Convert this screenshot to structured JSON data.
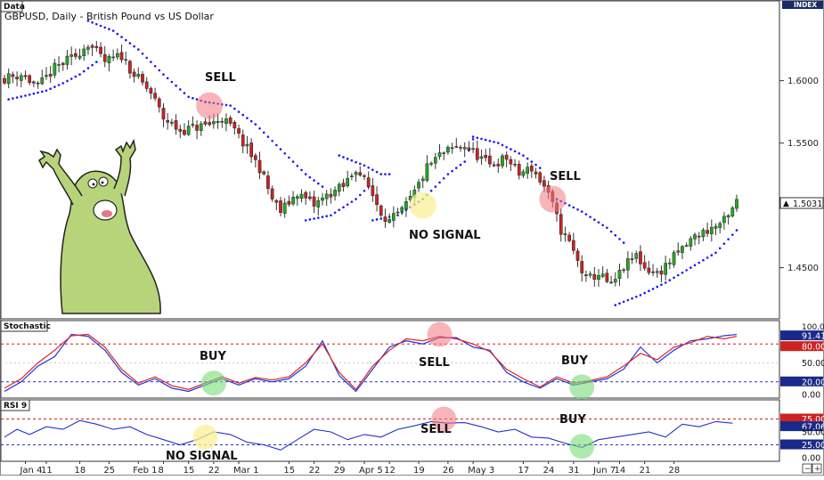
{
  "title": "GBPUSD, Daily - British Pound vs US Dollar",
  "colors": {
    "up": "#22aa22",
    "down": "#cc2222",
    "sar": "#1a1aee",
    "stoch_k": "#2233dd",
    "stoch_d": "#dd2222",
    "rsi": "#2233cc"
  },
  "annotations": {
    "sell_1": "SELL",
    "sell_2": "SELL",
    "no_signal_1": "NO SIGNAL",
    "stoch_buy_1": "BUY",
    "stoch_sell": "SELL",
    "stoch_buy_2": "BUY",
    "rsi_no_signal": "NO SIGNAL",
    "rsi_sell": "SELL",
    "rsi_buy": "BUY"
  },
  "chart_data": [
    {
      "type": "candlestick",
      "tag": "Data",
      "title": "GBPUSD, Daily - British Pound vs US Dollar",
      "axis_tag": "INDEX",
      "y_ticks": [
        "1.6000",
        "1.5500",
        "1.5031",
        "1.4500"
      ],
      "last_price": "1.5031",
      "x_ticks": [
        "Jan 4",
        "11",
        "18",
        "25",
        "Feb 1",
        "8",
        "15",
        "22",
        "Mar 1",
        "15",
        "22",
        "29",
        "Apr 5",
        "12",
        "19",
        "26",
        "May 3",
        "17",
        "24",
        "31",
        "Jun 7",
        "14",
        "21",
        "28"
      ],
      "close_path": [
        [
          0,
          1.602
        ],
        [
          4,
          1.605
        ],
        [
          8,
          1.595
        ],
        [
          12,
          1.61
        ],
        [
          17,
          1.62
        ],
        [
          20,
          1.63
        ],
        [
          24,
          1.615
        ],
        [
          28,
          1.62
        ],
        [
          31,
          1.605
        ],
        [
          35,
          1.59
        ],
        [
          38,
          1.57
        ],
        [
          42,
          1.56
        ],
        [
          45,
          1.562
        ],
        [
          49,
          1.565
        ],
        [
          52,
          1.57
        ],
        [
          55,
          1.56
        ],
        [
          58,
          1.545
        ],
        [
          61,
          1.53
        ],
        [
          64,
          1.505
        ],
        [
          66,
          1.495
        ],
        [
          70,
          1.51
        ],
        [
          74,
          1.5
        ],
        [
          78,
          1.51
        ],
        [
          81,
          1.515
        ],
        [
          84,
          1.53
        ],
        [
          87,
          1.515
        ],
        [
          90,
          1.495
        ],
        [
          92,
          1.487
        ],
        [
          95,
          1.495
        ],
        [
          98,
          1.51
        ],
        [
          101,
          1.53
        ],
        [
          104,
          1.54
        ],
        [
          107,
          1.545
        ],
        [
          110,
          1.548
        ],
        [
          113,
          1.54
        ],
        [
          116,
          1.532
        ],
        [
          120,
          1.538
        ],
        [
          123,
          1.525
        ],
        [
          126,
          1.53
        ],
        [
          129,
          1.515
        ],
        [
          131,
          1.5
        ],
        [
          133,
          1.48
        ],
        [
          135,
          1.47
        ],
        [
          137,
          1.455
        ],
        [
          139,
          1.44
        ],
        [
          142,
          1.445
        ],
        [
          145,
          1.435
        ],
        [
          148,
          1.45
        ],
        [
          151,
          1.46
        ],
        [
          153,
          1.45
        ],
        [
          156,
          1.445
        ],
        [
          159,
          1.455
        ],
        [
          162,
          1.465
        ],
        [
          165,
          1.475
        ],
        [
          168,
          1.48
        ],
        [
          171,
          1.485
        ],
        [
          173,
          1.49
        ],
        [
          175,
          1.5031
        ]
      ],
      "parabolic_sar": [
        [
          [
            1,
            1.585
          ],
          [
            5,
            1.588
          ],
          [
            10,
            1.592
          ],
          [
            14,
            1.598
          ],
          [
            18,
            1.605
          ],
          [
            22,
            1.615
          ]
        ],
        [
          [
            20,
            1.648
          ],
          [
            26,
            1.64
          ],
          [
            32,
            1.625
          ],
          [
            38,
            1.605
          ],
          [
            44,
            1.587
          ],
          [
            48,
            1.583
          ]
        ],
        [
          [
            48,
            1.583
          ],
          [
            54,
            1.58
          ],
          [
            60,
            1.565
          ],
          [
            66,
            1.545
          ],
          [
            72,
            1.525
          ],
          [
            76,
            1.515
          ]
        ],
        [
          [
            72,
            1.488
          ],
          [
            78,
            1.492
          ],
          [
            84,
            1.505
          ],
          [
            87,
            1.515
          ]
        ],
        [
          [
            80,
            1.54
          ],
          [
            86,
            1.532
          ],
          [
            90,
            1.525
          ],
          [
            92,
            1.525
          ]
        ],
        [
          [
            88,
            1.488
          ],
          [
            94,
            1.492
          ],
          [
            100,
            1.505
          ],
          [
            106,
            1.525
          ],
          [
            110,
            1.535
          ],
          [
            112,
            1.553
          ]
        ],
        [
          [
            112,
            1.555
          ],
          [
            118,
            1.55
          ],
          [
            124,
            1.54
          ],
          [
            128,
            1.53
          ]
        ],
        [
          [
            132,
            1.505
          ],
          [
            138,
            1.495
          ],
          [
            144,
            1.482
          ],
          [
            148,
            1.47
          ]
        ],
        [
          [
            146,
            1.42
          ],
          [
            152,
            1.428
          ],
          [
            158,
            1.438
          ],
          [
            164,
            1.45
          ],
          [
            170,
            1.462
          ],
          [
            175,
            1.48
          ]
        ]
      ],
      "circles": [
        {
          "label": "SELL",
          "color": "pink",
          "t": 49,
          "v": 1.58
        },
        {
          "label": "NO SIGNAL",
          "color": "yellow",
          "t": 100,
          "v": 1.5
        },
        {
          "label": "SELL",
          "color": "pink",
          "t": 131,
          "v": 1.505
        }
      ]
    },
    {
      "type": "line",
      "tag": "Stochastic",
      "y_ticks": [
        100,
        91.41,
        80,
        50,
        20,
        0
      ],
      "last_values": [
        91.41,
        80.0,
        50.0,
        20.0,
        0.0
      ],
      "levels": {
        "upper": 80,
        "lower": 20
      },
      "series": [
        {
          "key": "k",
          "values": [
            [
              0,
              5
            ],
            [
              4,
              20
            ],
            [
              8,
              45
            ],
            [
              12,
              60
            ],
            [
              16,
              95
            ],
            [
              20,
              92
            ],
            [
              24,
              70
            ],
            [
              28,
              35
            ],
            [
              32,
              15
            ],
            [
              36,
              25
            ],
            [
              40,
              10
            ],
            [
              44,
              5
            ],
            [
              48,
              15
            ],
            [
              52,
              25
            ],
            [
              56,
              15
            ],
            [
              60,
              25
            ],
            [
              64,
              20
            ],
            [
              68,
              25
            ],
            [
              72,
              45
            ],
            [
              76,
              85
            ],
            [
              80,
              30
            ],
            [
              84,
              5
            ],
            [
              88,
              40
            ],
            [
              92,
              75
            ],
            [
              96,
              85
            ],
            [
              100,
              80
            ],
            [
              104,
              90
            ],
            [
              108,
              90
            ],
            [
              112,
              75
            ],
            [
              116,
              70
            ],
            [
              120,
              35
            ],
            [
              124,
              20
            ],
            [
              128,
              10
            ],
            [
              132,
              25
            ],
            [
              136,
              15
            ],
            [
              140,
              20
            ],
            [
              144,
              25
            ],
            [
              148,
              40
            ],
            [
              152,
              75
            ],
            [
              156,
              50
            ],
            [
              160,
              70
            ],
            [
              164,
              85
            ],
            [
              168,
              88
            ],
            [
              172,
              93
            ],
            [
              175,
              95
            ]
          ]
        },
        {
          "key": "d",
          "values": [
            [
              0,
              10
            ],
            [
              4,
              25
            ],
            [
              8,
              50
            ],
            [
              12,
              70
            ],
            [
              16,
              93
            ],
            [
              20,
              95
            ],
            [
              24,
              75
            ],
            [
              28,
              40
            ],
            [
              32,
              18
            ],
            [
              36,
              28
            ],
            [
              40,
              14
            ],
            [
              44,
              8
            ],
            [
              48,
              18
            ],
            [
              52,
              28
            ],
            [
              56,
              18
            ],
            [
              60,
              27
            ],
            [
              64,
              23
            ],
            [
              68,
              28
            ],
            [
              72,
              50
            ],
            [
              76,
              80
            ],
            [
              80,
              35
            ],
            [
              84,
              8
            ],
            [
              88,
              45
            ],
            [
              92,
              70
            ],
            [
              96,
              88
            ],
            [
              100,
              85
            ],
            [
              104,
              92
            ],
            [
              108,
              88
            ],
            [
              112,
              80
            ],
            [
              116,
              68
            ],
            [
              120,
              40
            ],
            [
              124,
              25
            ],
            [
              128,
              12
            ],
            [
              132,
              28
            ],
            [
              136,
              18
            ],
            [
              140,
              22
            ],
            [
              144,
              28
            ],
            [
              148,
              45
            ],
            [
              152,
              65
            ],
            [
              156,
              55
            ],
            [
              160,
              75
            ],
            [
              164,
              82
            ],
            [
              168,
              92
            ],
            [
              172,
              88
            ],
            [
              175,
              92
            ]
          ]
        }
      ],
      "circles": [
        {
          "label": "BUY",
          "color": "green",
          "t": 50,
          "v": 18
        },
        {
          "label": "SELL",
          "color": "pink",
          "t": 104,
          "v": 95
        },
        {
          "label": "BUY",
          "color": "green",
          "t": 138,
          "v": 12
        }
      ]
    },
    {
      "type": "line",
      "tag": "RSI 9",
      "y_ticks": [
        75,
        67.06,
        50,
        25,
        0
      ],
      "last_values": [
        75.0,
        67.06,
        50.0,
        25.0,
        0.0
      ],
      "levels": {
        "upper": 75,
        "lower": 25
      },
      "series": [
        {
          "key": "rsi",
          "values": [
            [
              0,
              40
            ],
            [
              3,
              55
            ],
            [
              6,
              45
            ],
            [
              10,
              60
            ],
            [
              14,
              55
            ],
            [
              18,
              72
            ],
            [
              22,
              65
            ],
            [
              26,
              55
            ],
            [
              30,
              60
            ],
            [
              34,
              45
            ],
            [
              38,
              35
            ],
            [
              42,
              25
            ],
            [
              46,
              35
            ],
            [
              50,
              50
            ],
            [
              54,
              45
            ],
            [
              58,
              30
            ],
            [
              62,
              25
            ],
            [
              66,
              15
            ],
            [
              70,
              35
            ],
            [
              74,
              55
            ],
            [
              78,
              50
            ],
            [
              82,
              35
            ],
            [
              86,
              45
            ],
            [
              90,
              40
            ],
            [
              94,
              55
            ],
            [
              98,
              62
            ],
            [
              102,
              70
            ],
            [
              106,
              67
            ],
            [
              110,
              68
            ],
            [
              114,
              60
            ],
            [
              118,
              50
            ],
            [
              122,
              55
            ],
            [
              126,
              40
            ],
            [
              130,
              38
            ],
            [
              134,
              28
            ],
            [
              138,
              20
            ],
            [
              142,
              35
            ],
            [
              146,
              40
            ],
            [
              150,
              45
            ],
            [
              154,
              50
            ],
            [
              158,
              40
            ],
            [
              162,
              65
            ],
            [
              166,
              60
            ],
            [
              170,
              70
            ],
            [
              174,
              67
            ]
          ]
        }
      ],
      "circles": [
        {
          "label": "NO SIGNAL",
          "color": "yellow",
          "t": 48,
          "v": 40
        },
        {
          "label": "SELL",
          "color": "pink",
          "t": 105,
          "v": 75
        },
        {
          "label": "BUY",
          "color": "green",
          "t": 138,
          "v": 22
        }
      ]
    }
  ]
}
